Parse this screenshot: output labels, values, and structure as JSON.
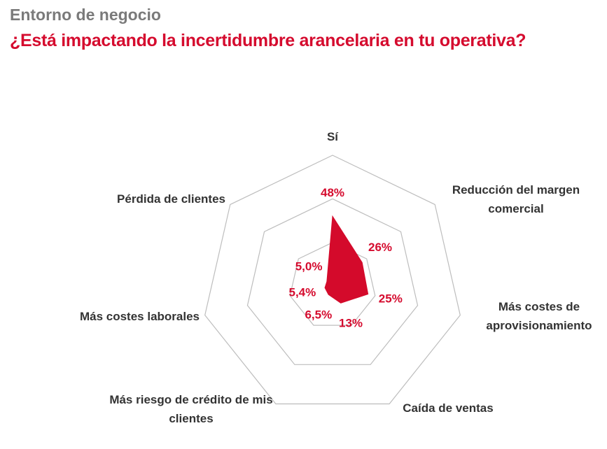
{
  "chart_data": {
    "type": "radar",
    "title": "Entorno de negocio",
    "subtitle": "¿Está impactando la incertidumbre arancelaria en tu operativa?",
    "categories": [
      "Sí",
      "Reducción del margen comercial",
      "Más costes de aprovisionamiento",
      "Caída de ventas",
      "Más riesgo de crédito de mis clientes",
      "Más costes laborales",
      "Pérdida de clientes"
    ],
    "values": [
      48,
      26,
      25,
      13,
      6.5,
      5.4,
      5.0
    ],
    "value_labels": [
      "48%",
      "26%",
      "25%",
      "13%",
      "6,5%",
      "5,4%",
      "5,0%"
    ],
    "color": "#d40a2b",
    "ylim": [
      0,
      90
    ],
    "yticks": [
      30,
      60,
      90
    ],
    "grid": true
  }
}
